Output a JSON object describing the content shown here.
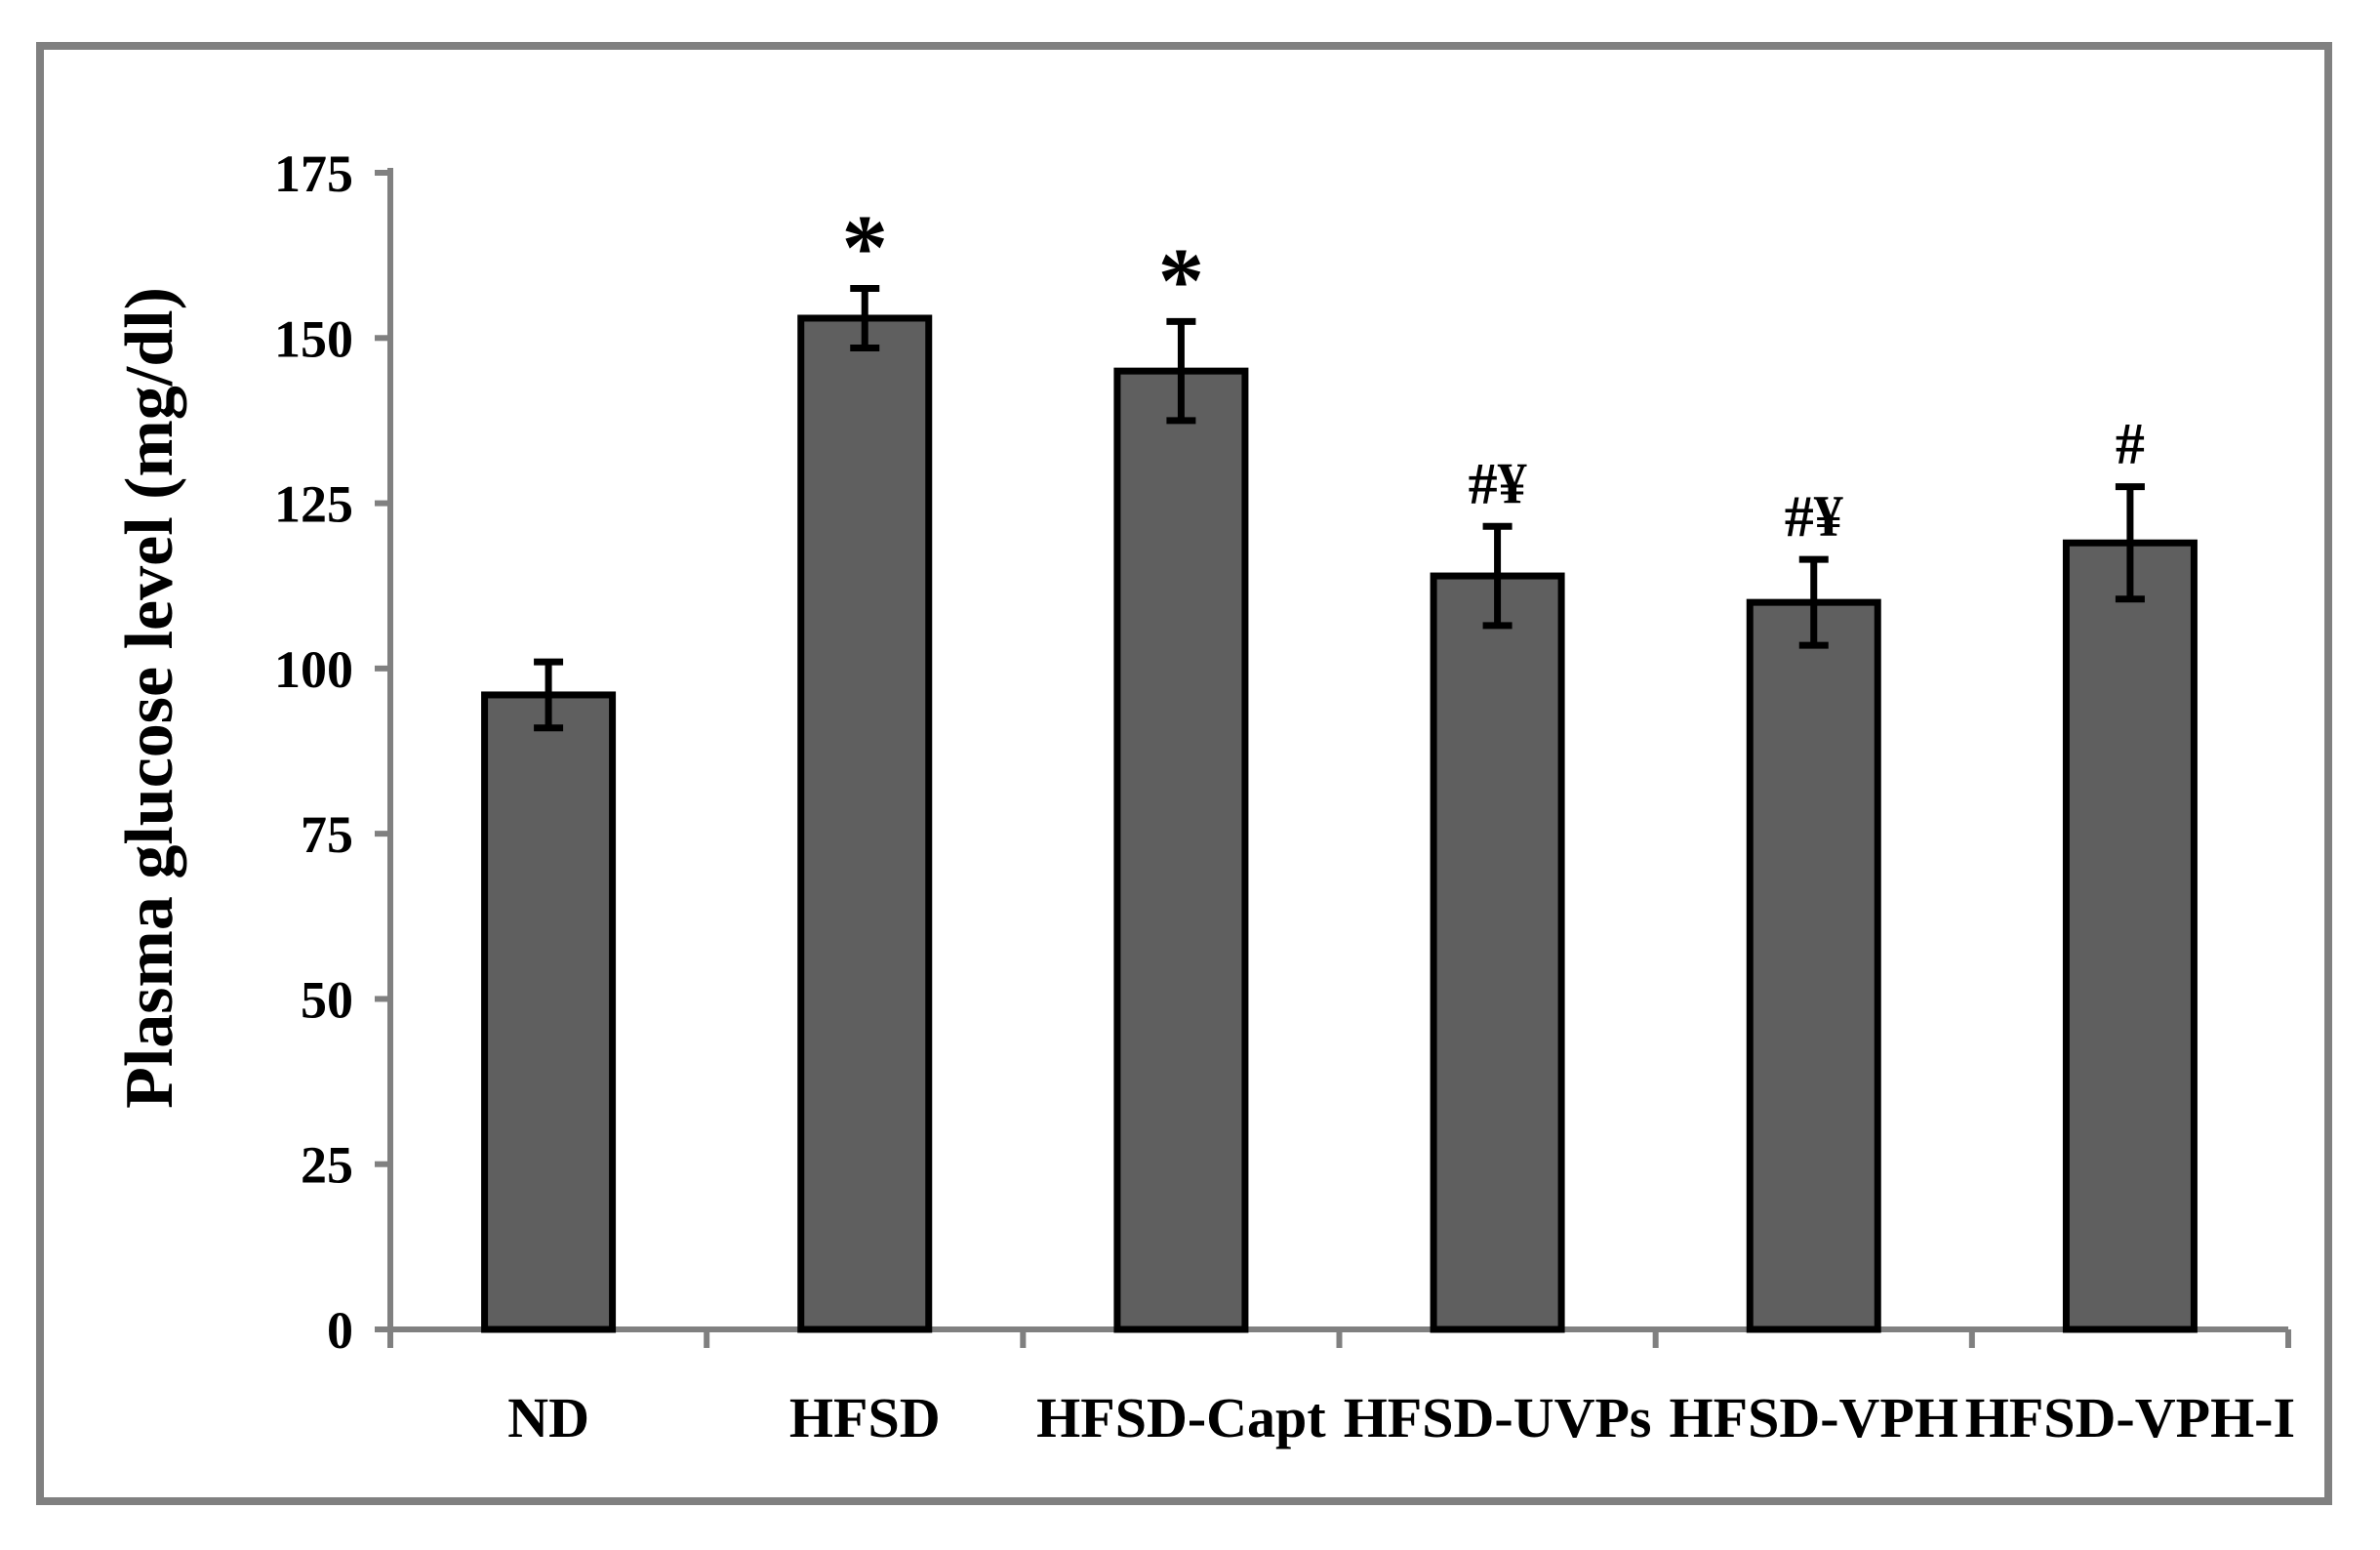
{
  "figure": {
    "background": "#ffffff",
    "frame_color": "#808080",
    "axis_color": "#808080",
    "bar_fill": "#5F5F5F",
    "bar_stroke": "#000000",
    "error_color": "#000000",
    "text_color": "#000000"
  },
  "chart_data": {
    "type": "bar",
    "title": "",
    "xlabel": "",
    "ylabel": "Plasma glucose level (mg/dl)",
    "ylim": [
      0,
      175
    ],
    "yticks": [
      0,
      25,
      50,
      75,
      100,
      125,
      150,
      175
    ],
    "grid": false,
    "legend": null,
    "categories": [
      "ND",
      "HFSD",
      "HFSD-Capt",
      "HFSD-UVPs",
      "HFSD-VPH",
      "HFSD-VPH-I"
    ],
    "values": [
      96,
      153,
      145,
      114,
      110,
      119
    ],
    "errors": [
      5,
      4.5,
      7.5,
      7.5,
      6.5,
      8.5
    ],
    "annotations": [
      "",
      "*",
      "*",
      "#¥",
      "#¥",
      "#"
    ],
    "series_name": "Plasma glucose level"
  }
}
